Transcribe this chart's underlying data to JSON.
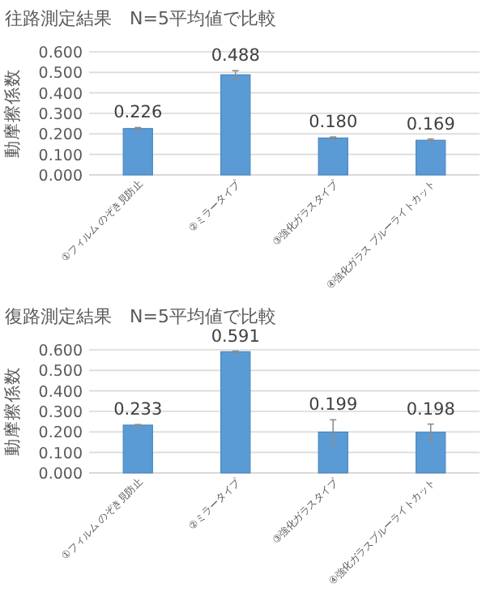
{
  "chart_data": [
    {
      "type": "bar",
      "title": "往路測定結果　N=5平均値で比較",
      "ylabel": "動摩擦係数",
      "categories": [
        "①フィルム のぞき見防止",
        "②ミラータイプ",
        "③強化ガラスタイプ",
        "④強化ガラス ブルーライトカット"
      ],
      "values": [
        0.226,
        0.488,
        0.18,
        0.169
      ],
      "errors": [
        0.005,
        0.02,
        0.005,
        0.006
      ],
      "color": "#5b9bd5",
      "ylim": [
        0,
        0.6
      ],
      "yticks": [
        {
          "value": 0,
          "label": "0.000"
        },
        {
          "value": 0.1,
          "label": "0.100"
        },
        {
          "value": 0.2,
          "label": "0.200"
        },
        {
          "value": 0.3,
          "label": "0.300"
        },
        {
          "value": 0.4,
          "label": "0.400"
        },
        {
          "value": 0.5,
          "label": "0.500"
        },
        {
          "value": 0.6,
          "label": "0.600"
        }
      ],
      "grid": "y",
      "value_labels": [
        "0.226",
        "0.488",
        "0.180",
        "0.169"
      ]
    },
    {
      "type": "bar",
      "title": "復路測定結果　N=5平均値で比較",
      "ylabel": "動摩擦係数",
      "categories": [
        "①フィルム のぞき見防止",
        "②ミラータイプ",
        "③強化ガラスタイプ",
        "④強化ガラスブルーライトカット"
      ],
      "values": [
        0.233,
        0.591,
        0.199,
        0.198
      ],
      "errors": [
        0.003,
        0.003,
        0.06,
        0.04
      ],
      "color": "#5b9bd5",
      "ylim": [
        0,
        0.6
      ],
      "yticks": [
        {
          "value": 0,
          "label": "0.000"
        },
        {
          "value": 0.1,
          "label": "0.100"
        },
        {
          "value": 0.2,
          "label": "0.200"
        },
        {
          "value": 0.3,
          "label": "0.300"
        },
        {
          "value": 0.4,
          "label": "0.400"
        },
        {
          "value": 0.5,
          "label": "0.500"
        },
        {
          "value": 0.6,
          "label": "0.600"
        }
      ],
      "grid": "y",
      "value_labels": [
        "0.233",
        "0.591",
        "0.199",
        "0.198"
      ]
    }
  ]
}
